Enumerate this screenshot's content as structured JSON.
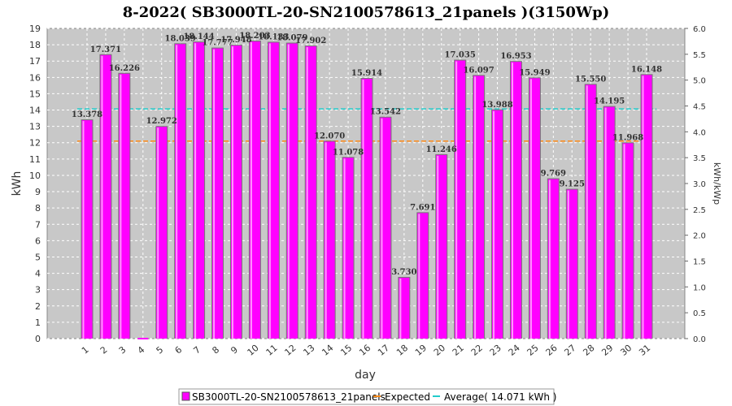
{
  "chart_data": {
    "type": "bar",
    "title": "8-2022( SB3000TL-20-SN2100578613_21panels )(3150Wp)",
    "xlabel": "day",
    "ylabel": "kWh",
    "y2label": "kWh/kWp",
    "ylim": [
      0,
      19
    ],
    "y2lim": [
      0,
      6.0
    ],
    "yticks": [
      "0",
      "1",
      "2",
      "3",
      "4",
      "5",
      "6",
      "7",
      "8",
      "9",
      "10",
      "11",
      "12",
      "13",
      "14",
      "15",
      "16",
      "17",
      "18",
      "19"
    ],
    "y2ticks": [
      "0.0",
      "0.5",
      "1.0",
      "1.5",
      "2.0",
      "2.5",
      "3.0",
      "3.5",
      "4.0",
      "4.5",
      "5.0",
      "5.5",
      "6.0"
    ],
    "grid": true,
    "categories": [
      "1",
      "2",
      "3",
      "4",
      "5",
      "6",
      "7",
      "8",
      "9",
      "10",
      "11",
      "12",
      "13",
      "14",
      "15",
      "16",
      "17",
      "18",
      "19",
      "20",
      "21",
      "22",
      "23",
      "24",
      "25",
      "26",
      "27",
      "28",
      "29",
      "30",
      "31"
    ],
    "series": [
      {
        "name": "SB3000TL-20-SN2100578613_21panels",
        "color": "#ff00ff",
        "values": [
          13.378,
          17.371,
          16.226,
          0,
          12.972,
          18.039,
          18.144,
          17.777,
          17.948,
          18.203,
          18.133,
          18.079,
          17.902,
          12.07,
          11.078,
          15.914,
          13.542,
          3.73,
          7.691,
          11.246,
          17.035,
          16.097,
          13.988,
          16.953,
          15.949,
          9.769,
          9.125,
          15.55,
          14.195,
          11.968,
          16.148
        ],
        "labels": [
          "13.378",
          "17.371",
          "16.226",
          "",
          "12.972",
          "18.039",
          "18.144",
          "17.777",
          "17.948",
          "18.203",
          "18.133",
          "18.079",
          "17.902",
          "12.070",
          "11.078",
          "15.914",
          "13.542",
          "3.730",
          "7.691",
          "11.246",
          "17.035",
          "16.097",
          "13.988",
          "16.953",
          "15.949",
          "9.769",
          "9.125",
          "15.550",
          "14.195",
          "11.968",
          "16.148"
        ]
      }
    ],
    "expected": {
      "name": "Expected",
      "value": 12.1,
      "color": "#ff8c1a"
    },
    "average": {
      "name": "Average( 14.071 kWh )",
      "value": 14.071,
      "color": "#22cccc"
    },
    "legend_position": "bottom"
  }
}
